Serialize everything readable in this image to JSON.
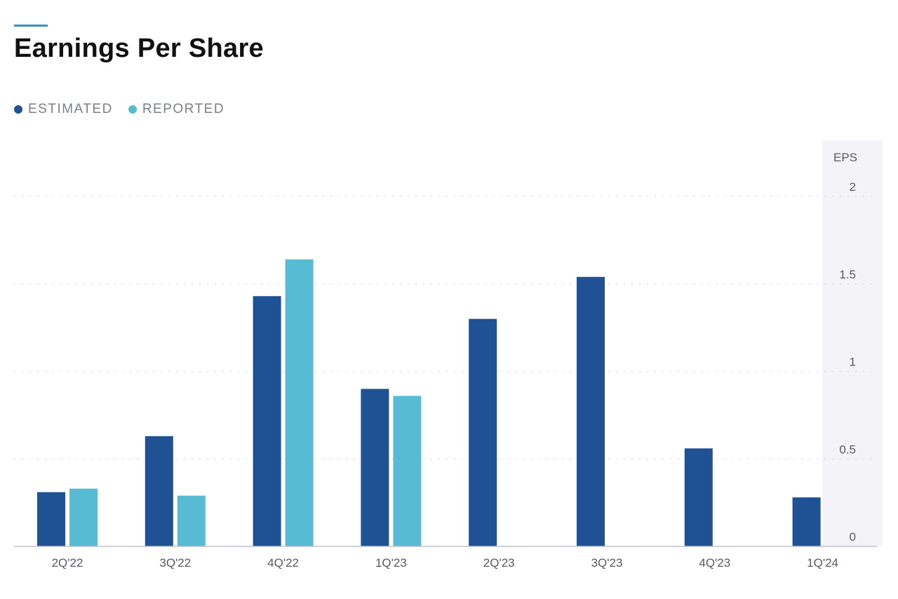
{
  "header": {
    "title": "Earnings Per Share"
  },
  "legend": [
    {
      "label": "ESTIMATED",
      "color": "#1f5195"
    },
    {
      "label": "REPORTED",
      "color": "#56bbd3"
    }
  ],
  "chart_data": {
    "type": "bar",
    "title": "Earnings Per Share",
    "ylabel": "EPS",
    "ylim": [
      0,
      2
    ],
    "yticks": [
      0,
      0.5,
      1,
      1.5,
      2
    ],
    "grid": true,
    "legend_position": "top-left",
    "categories": [
      "2Q'22",
      "3Q'22",
      "4Q'22",
      "1Q'23",
      "2Q'23",
      "3Q'23",
      "4Q'23",
      "1Q'24"
    ],
    "series": [
      {
        "name": "ESTIMATED",
        "color": "#1f5195",
        "values": [
          0.31,
          0.63,
          1.43,
          0.9,
          1.3,
          1.54,
          0.56,
          0.28
        ]
      },
      {
        "name": "REPORTED",
        "color": "#56bbd3",
        "values": [
          0.33,
          0.29,
          1.64,
          0.86,
          null,
          null,
          null,
          null
        ]
      }
    ]
  }
}
